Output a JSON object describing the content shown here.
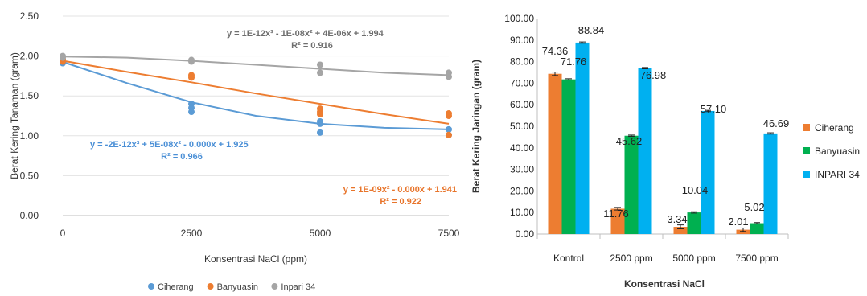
{
  "chart_data": [
    {
      "type": "scatter",
      "xlabel": "Konsentrasi NaCl (ppm)",
      "ylabel": "Berat Kering Tanaman (gram)",
      "xlim": [
        0,
        7500
      ],
      "ylim": [
        0,
        2.5
      ],
      "x_ticks": [
        "0",
        "2500",
        "5000",
        "7500"
      ],
      "y_ticks": [
        "0.00",
        "0.50",
        "1.00",
        "1.50",
        "2.00",
        "2.50"
      ],
      "legend_position": "bottom",
      "series": [
        {
          "name": "Ciherang",
          "color": "#5b9bd5",
          "points": [
            [
              0,
              1.93
            ],
            [
              0,
              1.91
            ],
            [
              2500,
              1.4
            ],
            [
              2500,
              1.35
            ],
            [
              2500,
              1.3
            ],
            [
              5000,
              1.18
            ],
            [
              5000,
              1.15
            ],
            [
              5000,
              1.04
            ],
            [
              7500,
              1.08
            ],
            [
              7500,
              1.01
            ]
          ],
          "trend": [
            [
              0,
              1.925
            ],
            [
              1250,
              1.66
            ],
            [
              2500,
              1.42
            ],
            [
              3750,
              1.25
            ],
            [
              5000,
              1.15
            ],
            [
              6250,
              1.1
            ],
            [
              7500,
              1.08
            ]
          ],
          "equation": "y = -2E-12x³ + 5E-08x² - 0.000x + 1.925",
          "r2": "R² = 0.966"
        },
        {
          "name": "Banyuasin",
          "color": "#ed7d31",
          "points": [
            [
              0,
              1.96
            ],
            [
              0,
              1.93
            ],
            [
              2500,
              1.76
            ],
            [
              2500,
              1.73
            ],
            [
              5000,
              1.34
            ],
            [
              5000,
              1.3
            ],
            [
              5000,
              1.27
            ],
            [
              7500,
              1.28
            ],
            [
              7500,
              1.25
            ],
            [
              7500,
              1.01
            ]
          ],
          "trend": [
            [
              0,
              1.941
            ],
            [
              1250,
              1.8
            ],
            [
              2500,
              1.67
            ],
            [
              3750,
              1.53
            ],
            [
              5000,
              1.4
            ],
            [
              6250,
              1.27
            ],
            [
              7500,
              1.15
            ]
          ],
          "equation": "y = 1E-09x² - 0.000x + 1.941",
          "r2": "R² = 0.922"
        },
        {
          "name": "Inpari 34",
          "color": "#a5a5a5",
          "points": [
            [
              0,
              2.0
            ],
            [
              0,
              1.98
            ],
            [
              2500,
              1.95
            ],
            [
              2500,
              1.93
            ],
            [
              5000,
              1.89
            ],
            [
              5000,
              1.79
            ],
            [
              7500,
              1.79
            ],
            [
              7500,
              1.74
            ]
          ],
          "trend": [
            [
              0,
              1.994
            ],
            [
              1250,
              1.98
            ],
            [
              2500,
              1.94
            ],
            [
              3750,
              1.89
            ],
            [
              5000,
              1.84
            ],
            [
              6250,
              1.79
            ],
            [
              7500,
              1.76
            ]
          ],
          "equation": "y = 1E-12x³ - 1E-08x² + 4E-06x + 1.994",
          "r2": "R² = 0.916"
        }
      ]
    },
    {
      "type": "bar",
      "xlabel": "Konsentrasi NaCl",
      "ylabel": "Berat Kering Jaringan  (gram)",
      "ylim": [
        0,
        100
      ],
      "y_ticks": [
        "0.00",
        "10.00",
        "20.00",
        "30.00",
        "40.00",
        "50.00",
        "60.00",
        "70.00",
        "80.00",
        "90.00",
        "100.00"
      ],
      "categories": [
        "Kontrol",
        "2500 ppm",
        "5000 ppm",
        "7500 ppm"
      ],
      "legend_position": "right",
      "series": [
        {
          "name": "Ciherang",
          "color": "#ed7d31",
          "values": [
            74.36,
            11.76,
            3.34,
            2.01
          ],
          "labels": [
            "74.36",
            "11.76",
            "3.34",
            "2.01"
          ],
          "errors": [
            0.8,
            0.6,
            0.9,
            0.8
          ]
        },
        {
          "name": "Banyuasin",
          "color": "#00b050",
          "values": [
            71.76,
            45.62,
            10.04,
            5.02
          ],
          "labels": [
            "71.76",
            "45.62",
            "10.04",
            "5.02"
          ],
          "errors": [
            0.3,
            0.3,
            0.3,
            0.3
          ]
        },
        {
          "name": "INPARI 34",
          "color": "#00b0f0",
          "values": [
            88.84,
            76.98,
            57.1,
            46.69
          ],
          "labels": [
            "88.84",
            "76.98",
            "57.10",
            "46.69"
          ],
          "errors": [
            0.3,
            0.3,
            0.3,
            0.3
          ]
        }
      ]
    }
  ]
}
